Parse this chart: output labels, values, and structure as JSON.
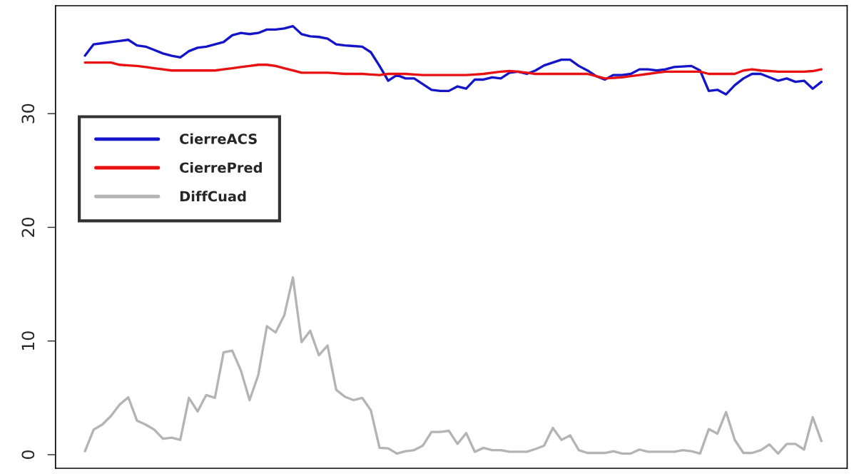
{
  "chart_data": {
    "type": "line",
    "categories": [
      null,
      null,
      null,
      null,
      null,
      null,
      null,
      null,
      null,
      null,
      null,
      null,
      null,
      null,
      null,
      null,
      null,
      null,
      null,
      null,
      null,
      null,
      null,
      null,
      null,
      null,
      null,
      null,
      null,
      null,
      null,
      null,
      null,
      null,
      null,
      null,
      null,
      null,
      null,
      null,
      null,
      null,
      null,
      null,
      null,
      null,
      null,
      null,
      null,
      null,
      null,
      null,
      null,
      null,
      null,
      null,
      null,
      null,
      null,
      null,
      null,
      null,
      null,
      null,
      null,
      null,
      null,
      null,
      null,
      null,
      null,
      null,
      null,
      null,
      null,
      null,
      null,
      null,
      null,
      null,
      null,
      null,
      null,
      null,
      null,
      null
    ],
    "ylim": [
      -1.2,
      39.5
    ],
    "yticks": [
      0,
      10,
      20,
      30
    ],
    "tick_labels": "y",
    "legend": "top left",
    "marker": "none",
    "line_style": "solid",
    "series": [
      {
        "name": "CierreACS",
        "color": "#1414c8",
        "values": [
          35.1,
          36.1,
          36.2,
          36.3,
          36.4,
          36.5,
          36.0,
          35.9,
          35.6,
          35.3,
          35.1,
          34.95,
          35.5,
          35.8,
          35.9,
          36.1,
          36.3,
          36.9,
          37.1,
          37.0,
          37.1,
          37.4,
          37.4,
          37.5,
          37.7,
          37.0,
          36.8,
          36.75,
          36.6,
          36.1,
          36.0,
          35.95,
          35.9,
          35.4,
          34.2,
          32.9,
          33.4,
          33.1,
          33.1,
          32.6,
          32.1,
          32.0,
          32.0,
          32.4,
          32.2,
          33.0,
          33.0,
          33.2,
          33.1,
          33.6,
          33.7,
          33.5,
          33.8,
          34.25,
          34.5,
          34.75,
          34.75,
          34.2,
          33.8,
          33.3,
          33.0,
          33.4,
          33.4,
          33.5,
          33.9,
          33.9,
          33.8,
          33.9,
          34.1,
          34.15,
          34.2,
          33.8,
          32.0,
          32.1,
          31.7,
          32.5,
          33.1,
          33.5,
          33.5,
          33.2,
          32.9,
          33.1,
          32.8,
          32.9,
          32.2,
          32.8
        ]
      },
      {
        "name": "CierrePred",
        "color": "#e81010",
        "values": [
          34.5,
          34.5,
          34.5,
          34.5,
          34.3,
          34.25,
          34.2,
          34.1,
          34.0,
          33.9,
          33.8,
          33.8,
          33.8,
          33.8,
          33.8,
          33.8,
          33.9,
          34.0,
          34.1,
          34.2,
          34.3,
          34.3,
          34.2,
          34.0,
          33.8,
          33.6,
          33.6,
          33.6,
          33.6,
          33.55,
          33.5,
          33.5,
          33.5,
          33.45,
          33.4,
          33.5,
          33.5,
          33.5,
          33.45,
          33.4,
          33.4,
          33.4,
          33.4,
          33.4,
          33.4,
          33.45,
          33.5,
          33.6,
          33.7,
          33.75,
          33.7,
          33.6,
          33.5,
          33.5,
          33.5,
          33.5,
          33.5,
          33.5,
          33.5,
          33.3,
          33.1,
          33.15,
          33.2,
          33.3,
          33.4,
          33.5,
          33.6,
          33.7,
          33.7,
          33.7,
          33.7,
          33.7,
          33.5,
          33.5,
          33.5,
          33.5,
          33.8,
          33.9,
          33.8,
          33.75,
          33.7,
          33.7,
          33.7,
          33.7,
          33.75,
          33.9
        ]
      },
      {
        "name": "DiffCuad",
        "color": "#b4b4b4",
        "values": [
          0.3,
          2.2,
          2.65,
          3.4,
          4.4,
          5.05,
          3.0,
          2.65,
          2.2,
          1.4,
          1.5,
          1.3,
          5.0,
          3.8,
          5.25,
          5.0,
          9.0,
          9.15,
          7.4,
          4.8,
          7.0,
          11.3,
          10.75,
          12.25,
          15.6,
          9.9,
          10.9,
          8.75,
          9.6,
          5.7,
          5.1,
          4.8,
          5.0,
          3.9,
          0.6,
          0.55,
          0.1,
          0.3,
          0.4,
          0.8,
          2.0,
          2.0,
          2.1,
          0.95,
          1.9,
          0.25,
          0.6,
          0.4,
          0.4,
          0.25,
          0.25,
          0.25,
          0.5,
          0.8,
          2.35,
          1.3,
          1.7,
          0.4,
          0.15,
          0.15,
          0.15,
          0.3,
          0.1,
          0.1,
          0.45,
          0.25,
          0.25,
          0.25,
          0.25,
          0.4,
          0.3,
          0.1,
          2.25,
          1.85,
          3.75,
          1.3,
          0.15,
          0.15,
          0.4,
          0.9,
          0.1,
          0.95,
          0.95,
          0.45,
          3.3,
          1.2
        ]
      }
    ]
  }
}
